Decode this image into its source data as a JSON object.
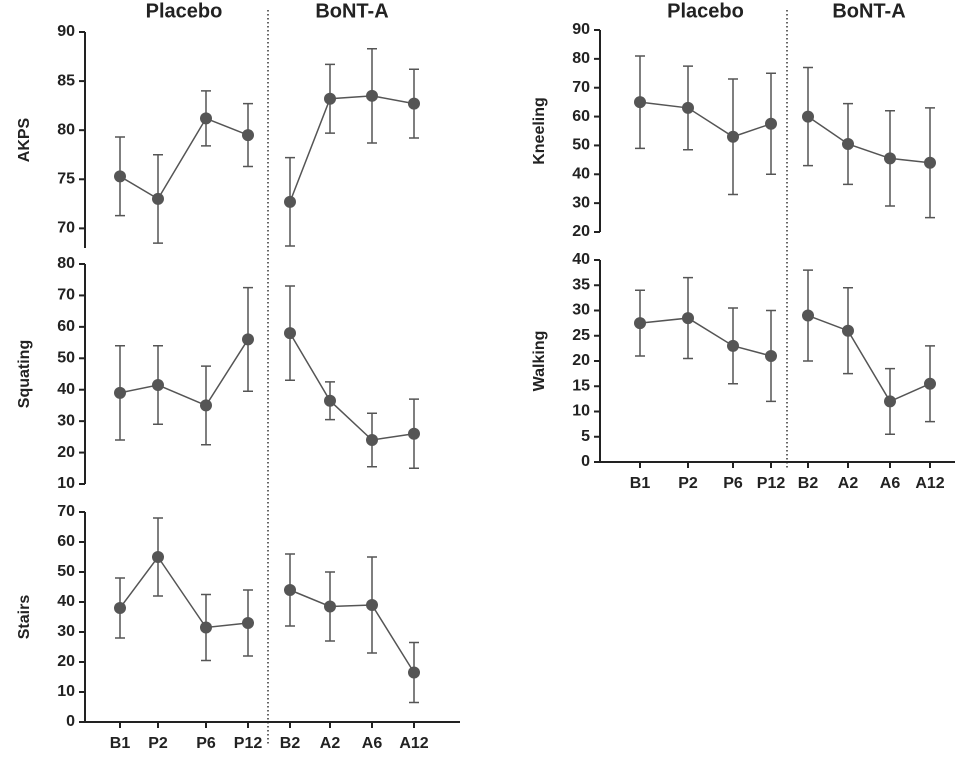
{
  "chart_data": [
    {
      "type": "line",
      "ylabel": "AKPS",
      "ylim": [
        68,
        90
      ],
      "yticks": [
        70,
        75,
        80,
        85,
        90
      ],
      "color": "#555555",
      "series": [
        {
          "name": "Placebo",
          "values": [
            75.3,
            73,
            81.2,
            79.5,
            null,
            null,
            null,
            null
          ],
          "errors": [
            4,
            4.5,
            2.8,
            3.2,
            null,
            null,
            null,
            null
          ]
        },
        {
          "name": "BoNT-A",
          "values": [
            null,
            null,
            null,
            null,
            72.7,
            83.2,
            83.5,
            82.7
          ],
          "errors": [
            null,
            null,
            null,
            null,
            4.5,
            3.5,
            4.8,
            3.5
          ]
        }
      ]
    },
    {
      "type": "line",
      "ylabel": "Squating",
      "ylim": [
        10,
        80
      ],
      "yticks": [
        10,
        20,
        30,
        40,
        50,
        60,
        70,
        80
      ],
      "color": "#555555",
      "series": [
        {
          "values": [
            39,
            41.5,
            35,
            56,
            null,
            null,
            null,
            null
          ],
          "errors": [
            15,
            12.5,
            12.5,
            16.5,
            null,
            null,
            null,
            null
          ]
        },
        {
          "values": [
            null,
            null,
            null,
            null,
            58,
            36.5,
            24,
            26
          ],
          "errors": [
            null,
            null,
            null,
            null,
            15,
            6,
            8.5,
            11
          ]
        }
      ]
    },
    {
      "type": "line",
      "ylabel": "Stairs",
      "ylim": [
        0,
        70
      ],
      "yticks": [
        0,
        10,
        20,
        30,
        40,
        50,
        60,
        70
      ],
      "color": "#555555",
      "categories": [
        "B1",
        "P2",
        "P6",
        "P12",
        "B2",
        "A2",
        "A6",
        "A12"
      ],
      "series": [
        {
          "values": [
            38,
            55,
            31.5,
            33,
            null,
            null,
            null,
            null
          ],
          "errors": [
            10,
            13,
            11,
            11,
            null,
            null,
            null,
            null
          ]
        },
        {
          "values": [
            null,
            null,
            null,
            null,
            44,
            38.5,
            39,
            16.5
          ],
          "errors": [
            null,
            null,
            null,
            null,
            12,
            11.5,
            16,
            10
          ]
        }
      ]
    },
    {
      "type": "line",
      "ylabel": "Kneeling",
      "ylim": [
        20,
        90
      ],
      "yticks": [
        20,
        30,
        40,
        50,
        60,
        70,
        80,
        90
      ],
      "color": "#555555",
      "series": [
        {
          "name": "Placebo",
          "values": [
            65,
            63,
            53,
            57.5,
            null,
            null,
            null,
            null
          ],
          "errors": [
            16,
            14.5,
            20,
            17.5,
            null,
            null,
            null,
            null
          ]
        },
        {
          "name": "BoNT-A",
          "values": [
            null,
            null,
            null,
            null,
            60,
            50.5,
            45.5,
            44
          ],
          "errors": [
            null,
            null,
            null,
            null,
            17,
            14,
            16.5,
            19
          ]
        }
      ]
    },
    {
      "type": "line",
      "ylabel": "Walking",
      "ylim": [
        0,
        40
      ],
      "yticks": [
        0,
        5,
        10,
        15,
        20,
        25,
        30,
        35,
        40
      ],
      "color": "#555555",
      "categories": [
        "B1",
        "P2",
        "P6",
        "P12",
        "B2",
        "A2",
        "A6",
        "A12"
      ],
      "series": [
        {
          "values": [
            27.5,
            28.5,
            23,
            21,
            null,
            null,
            null,
            null
          ],
          "errors": [
            6.5,
            8,
            7.5,
            9,
            null,
            null,
            null,
            null
          ]
        },
        {
          "values": [
            null,
            null,
            null,
            null,
            29,
            26,
            12,
            15.5
          ],
          "errors": [
            null,
            null,
            null,
            null,
            9,
            8.5,
            6.5,
            7.5
          ]
        }
      ]
    }
  ]
}
